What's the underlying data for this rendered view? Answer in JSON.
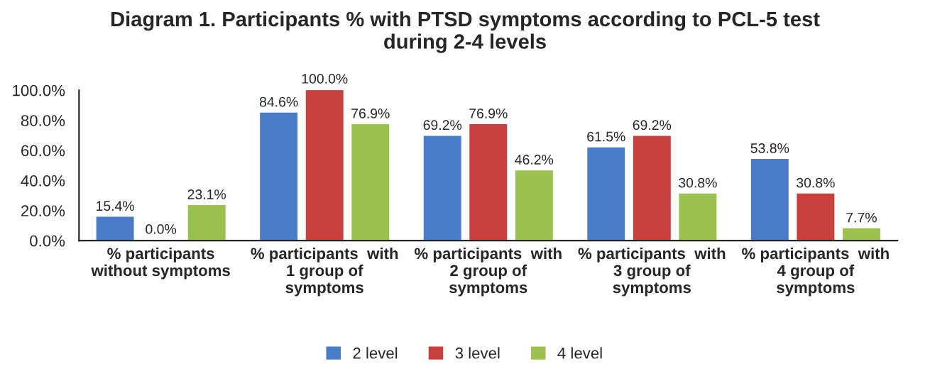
{
  "chart_data": {
    "type": "bar",
    "title": "Diagram 1. Participants % with PTSD symptoms according to PCL-5 test\nduring 2-4 levels",
    "categories": [
      "% participants\nwithout symptoms",
      "% participants  with\n1 group of\nsymptoms",
      "% participants  with\n2 group of\nsymptoms",
      "% participants  with\n3 group of\nsymptoms",
      "% participants  with\n4 group of\nsymptoms"
    ],
    "series": [
      {
        "name": "2 level",
        "color": "#4a7cc9",
        "values": [
          15.4,
          84.6,
          69.2,
          61.5,
          53.8
        ],
        "value_labels": [
          "15.4%",
          "84.6%",
          "69.2%",
          "61.5%",
          "53.8%"
        ]
      },
      {
        "name": "3 level",
        "color": "#c9403c",
        "values": [
          0.0,
          100.0,
          76.9,
          69.2,
          30.8
        ],
        "value_labels": [
          "0.0%",
          "100.0%",
          "76.9%",
          "69.2%",
          "30.8%"
        ]
      },
      {
        "name": "4 level",
        "color": "#9bc24f",
        "values": [
          23.1,
          76.9,
          46.2,
          30.8,
          7.7
        ],
        "value_labels": [
          "23.1%",
          "76.9%",
          "46.2%",
          "30.8%",
          "7.7%"
        ]
      }
    ],
    "ylim": [
      0,
      100
    ],
    "yticks": [
      {
        "value": 0,
        "label": "0.0%"
      },
      {
        "value": 20,
        "label": "20.0%"
      },
      {
        "value": 40,
        "label": "40.0%"
      },
      {
        "value": 60,
        "label": "60.0%"
      },
      {
        "value": 80,
        "label": "80.0%"
      },
      {
        "value": 100,
        "label": "100.0%"
      }
    ],
    "grid": false,
    "legend": "bottom"
  }
}
